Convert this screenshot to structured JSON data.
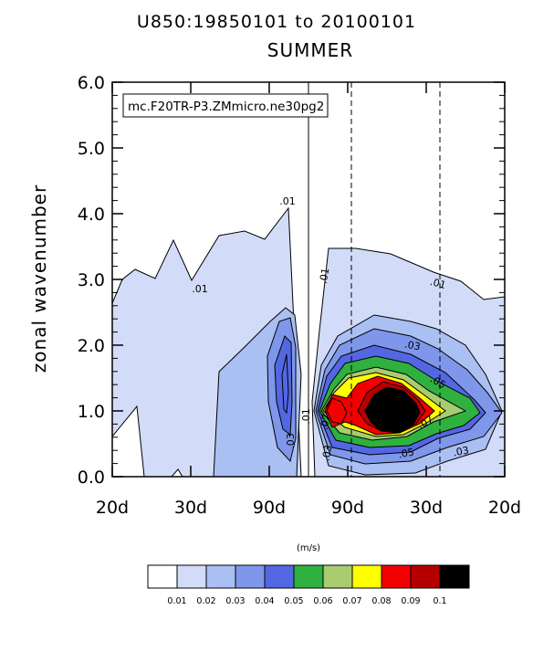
{
  "chart_data": {
    "type": "contour",
    "title": "U850:19850101 to 20100101",
    "subtitle": "SUMMER",
    "case_label": "mc.F20TR-P3.ZMmicro.ne30pg2",
    "ylabel": "zonal wavenumber",
    "ylim": [
      0,
      6
    ],
    "y_ticks": [
      "0.0",
      "1.0",
      "2.0",
      "3.0",
      "4.0",
      "5.0",
      "6.0"
    ],
    "x_ticks": [
      "20d",
      "30d",
      "90d",
      "90d",
      "30d",
      "20d"
    ],
    "units": "(m/s)",
    "colorbar_labels": [
      "0.01",
      "0.02",
      "0.03",
      "0.04",
      "0.05",
      "0.06",
      "0.07",
      "0.08",
      "0.09",
      "0.1"
    ],
    "contour_labels": [
      ".01",
      ".01",
      ".01",
      ".01",
      ".01",
      ".03",
      ".03",
      ".03",
      ".03",
      ".05",
      ".05",
      ".07",
      ".07"
    ],
    "colors": [
      "#ffffff",
      "#d2dcf8",
      "#aabff2",
      "#7f97ea",
      "#5367e3",
      "#2fb13f",
      "#a9cc71",
      "#ffff00",
      "#f20000",
      "#b60000",
      "#000000"
    ]
  }
}
